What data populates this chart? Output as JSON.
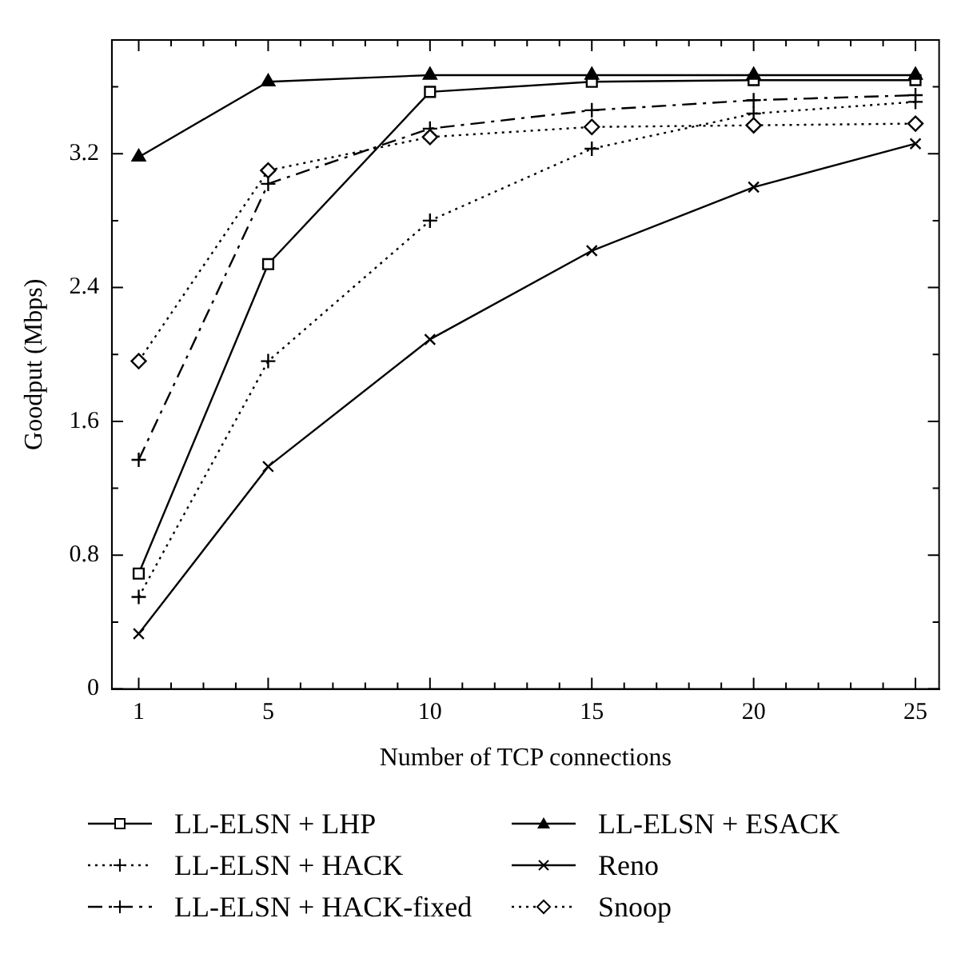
{
  "chart_data": {
    "type": "line",
    "xlabel": "Number of TCP connections",
    "ylabel": "Goodput (Mbps)",
    "x": [
      1,
      5,
      10,
      15,
      20,
      25
    ],
    "series": [
      {
        "name": "LL-ELSN + LHP",
        "color": "#000000",
        "marker": "square",
        "line_style": "solid",
        "values": [
          0.69,
          2.54,
          3.57,
          3.63,
          3.64,
          3.64
        ]
      },
      {
        "name": "LL-ELSN + HACK",
        "color": "#000000",
        "marker": "plus",
        "line_style": "dotted",
        "values": [
          0.55,
          1.96,
          2.8,
          3.23,
          3.44,
          3.51
        ]
      },
      {
        "name": "LL-ELSN + HACK-fixed",
        "color": "#000000",
        "marker": "plus",
        "line_style": "dashed",
        "values": [
          1.37,
          3.02,
          3.35,
          3.46,
          3.52,
          3.55
        ]
      },
      {
        "name": "LL-ELSN + ESACK",
        "color": "#000000",
        "marker": "triangle",
        "line_style": "solid",
        "values": [
          3.18,
          3.63,
          3.67,
          3.67,
          3.67,
          3.67
        ]
      },
      {
        "name": "Reno",
        "color": "#000000",
        "marker": "cross",
        "line_style": "solid",
        "values": [
          0.33,
          1.33,
          2.09,
          2.62,
          3.0,
          3.26
        ]
      },
      {
        "name": "Snoop",
        "color": "#000000",
        "marker": "diamond",
        "line_style": "dotted",
        "values": [
          1.96,
          3.1,
          3.3,
          3.36,
          3.37,
          3.38
        ]
      }
    ],
    "xlim": [
      0.17,
      25.73
    ],
    "xticks": [
      1,
      {
        "value": 2,
        "label": null
      },
      {
        "value": 3,
        "label": null
      },
      {
        "value": 4,
        "label": null
      },
      5,
      {
        "value": 6,
        "label": null
      },
      {
        "value": 7,
        "label": null
      },
      {
        "value": 8,
        "label": null
      },
      {
        "value": 9,
        "label": null
      },
      10,
      {
        "value": 11,
        "label": null
      },
      {
        "value": 12,
        "label": null
      },
      {
        "value": 13,
        "label": null
      },
      {
        "value": 14,
        "label": null
      },
      15,
      {
        "value": 16,
        "label": null
      },
      {
        "value": 17,
        "label": null
      },
      {
        "value": 18,
        "label": null
      },
      {
        "value": 19,
        "label": null
      },
      20,
      {
        "value": 21,
        "label": null
      },
      {
        "value": 22,
        "label": null
      },
      {
        "value": 23,
        "label": null
      },
      {
        "value": 24,
        "label": null
      },
      25
    ],
    "ylim": [
      0,
      3.88
    ],
    "yticks": [
      0,
      {
        "value": 0.4,
        "label": null
      },
      0.8,
      {
        "value": 1.2,
        "label": null
      },
      1.6,
      {
        "value": 2.0,
        "label": null
      },
      2.4,
      {
        "value": 2.8,
        "label": null
      },
      3.2,
      {
        "value": 3.6,
        "label": null
      }
    ],
    "grid": false,
    "legend": "bottom"
  }
}
